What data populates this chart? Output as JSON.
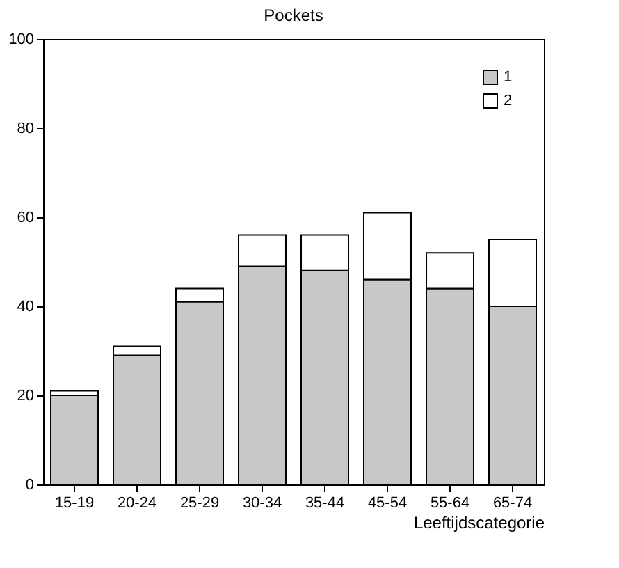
{
  "chart_data": {
    "type": "bar",
    "title": "Pockets",
    "xlabel": "Leeftijdscategorie",
    "categories": [
      "15-19",
      "20-24",
      "25-29",
      "30-34",
      "35-44",
      "45-54",
      "55-64",
      "65-74"
    ],
    "series": [
      {
        "name": "1",
        "color": "#c8c8c8",
        "values": [
          20,
          29,
          41,
          49,
          48,
          46,
          44,
          40
        ]
      },
      {
        "name": "2",
        "color": "#ffffff",
        "values": [
          1,
          2,
          3,
          7,
          8,
          15,
          8,
          15
        ]
      }
    ],
    "stacked": true,
    "ylim": [
      0,
      100
    ],
    "yticks": [
      0,
      20,
      40,
      60,
      80,
      100
    ],
    "grid": false,
    "legend": "top right"
  }
}
